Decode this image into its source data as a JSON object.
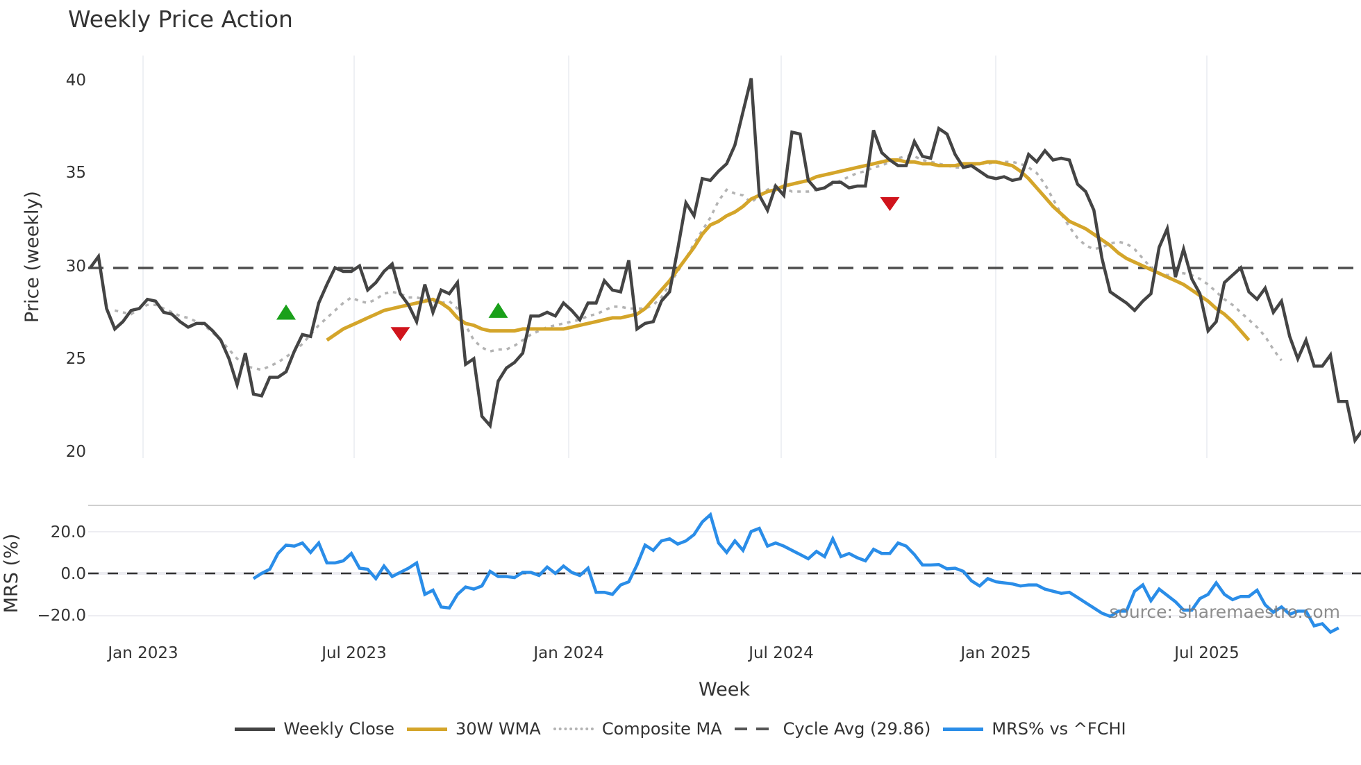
{
  "title": "Weekly Price Action",
  "source_text": "source: sharemaestro.com",
  "price_axis": {
    "label": "Price (weekly)",
    "ticks": [
      "20",
      "25",
      "30",
      "35",
      "40"
    ]
  },
  "mrs_axis": {
    "label": "MRS (%)",
    "ticks": [
      "−20.0",
      "0.0",
      "20.0"
    ]
  },
  "x_axis": {
    "label": "Week",
    "ticks": [
      "Jan 2023",
      "Jul 2023",
      "Jan 2024",
      "Jul 2024",
      "Jan 2025",
      "Jul 2025"
    ]
  },
  "legend": [
    {
      "label": "Weekly Close",
      "color": "#444444",
      "style": "solid"
    },
    {
      "label": "30W WMA",
      "color": "#d4a52a",
      "style": "solid"
    },
    {
      "label": "Composite MA",
      "color": "#b3b3b3",
      "style": "dotted"
    },
    {
      "label": "Cycle Avg (29.86)",
      "color": "#555555",
      "style": "dashed"
    },
    {
      "label": "MRS% vs ^FCHI",
      "color": "#2a8de8",
      "style": "solid"
    }
  ],
  "chart_data": [
    {
      "type": "line",
      "title": "Weekly Price Action",
      "xlabel": "Week",
      "ylabel": "Price (weekly)",
      "ylim": [
        19.5,
        41
      ],
      "x_ticks": [
        "Jan 2023",
        "Jul 2023",
        "Jan 2024",
        "Jul 2024",
        "Jan 2025",
        "Jul 2025"
      ],
      "x_start_week_index": 0,
      "grid": "vertical only",
      "hline": {
        "name": "Cycle Avg",
        "value": 29.86
      },
      "series": [
        {
          "name": "Weekly Close",
          "start": 0,
          "values": [
            29.9,
            30.5,
            27.7,
            26.6,
            27.0,
            27.6,
            27.7,
            28.2,
            28.1,
            27.5,
            27.4,
            27.0,
            26.7,
            26.9,
            26.9,
            26.5,
            26.0,
            25.0,
            23.6,
            25.3,
            23.1,
            23.0,
            24.0,
            24.0,
            24.3,
            25.4,
            26.3,
            26.2,
            28.0,
            29.0,
            29.9,
            29.7,
            29.7,
            30.0,
            28.7,
            29.1,
            29.7,
            30.1,
            28.5,
            27.9,
            27.0,
            29.0,
            27.5,
            28.7,
            28.5,
            29.1,
            24.7,
            25.0,
            21.9,
            21.4,
            23.8,
            24.5,
            24.8,
            25.3,
            27.3,
            27.3,
            27.5,
            27.3,
            28.0,
            27.6,
            27.1,
            28.0,
            28.0,
            29.2,
            28.7,
            28.6,
            30.3,
            26.6,
            26.9,
            27.0,
            28.1,
            28.6,
            30.9,
            33.4,
            32.7,
            34.7,
            34.6,
            35.1,
            35.5,
            36.5,
            38.3,
            40.1,
            33.8,
            33.0,
            34.3,
            33.8,
            37.2,
            37.1,
            34.6,
            34.1,
            34.2,
            34.5,
            34.5,
            34.2,
            34.3,
            34.3,
            37.3,
            36.1,
            35.7,
            35.4,
            35.4,
            36.7,
            35.9,
            35.8,
            37.4,
            37.1,
            36.0,
            35.3,
            35.4,
            35.1,
            34.8,
            34.7,
            34.8,
            34.6,
            34.7,
            36.0,
            35.6,
            36.2,
            35.7,
            35.8,
            35.7,
            34.4,
            34.0,
            33.0,
            30.4,
            28.6,
            28.3,
            28.0,
            27.6,
            28.1,
            28.5,
            31.0,
            32.0,
            29.4,
            30.9,
            29.3,
            28.5,
            26.5,
            27.0,
            29.1,
            29.5,
            29.9,
            28.6,
            28.2,
            28.8,
            27.5,
            28.1,
            26.2,
            25.0,
            26.0,
            24.6,
            24.6,
            25.2,
            22.7,
            22.7,
            20.6,
            21.2
          ]
        },
        {
          "name": "30W WMA",
          "start": 29,
          "values": [
            26.0,
            26.3,
            26.6,
            26.8,
            27.0,
            27.2,
            27.4,
            27.6,
            27.7,
            27.8,
            27.9,
            28.0,
            28.1,
            28.2,
            28.0,
            27.7,
            27.2,
            26.9,
            26.8,
            26.6,
            26.5,
            26.5,
            26.5,
            26.5,
            26.6,
            26.6,
            26.6,
            26.6,
            26.6,
            26.6,
            26.7,
            26.8,
            26.9,
            27.0,
            27.1,
            27.2,
            27.2,
            27.3,
            27.4,
            27.7,
            28.2,
            28.7,
            29.2,
            29.8,
            30.4,
            31.0,
            31.7,
            32.2,
            32.4,
            32.7,
            32.9,
            33.2,
            33.6,
            33.8,
            34.0,
            34.1,
            34.3,
            34.4,
            34.5,
            34.6,
            34.8,
            34.9,
            35.0,
            35.1,
            35.2,
            35.3,
            35.4,
            35.5,
            35.6,
            35.7,
            35.7,
            35.6,
            35.6,
            35.5,
            35.5,
            35.4,
            35.4,
            35.4,
            35.5,
            35.5,
            35.5,
            35.6,
            35.6,
            35.5,
            35.4,
            35.1,
            34.7,
            34.2,
            33.7,
            33.2,
            32.8,
            32.4,
            32.2,
            32.0,
            31.7,
            31.4,
            31.1,
            30.7,
            30.4,
            30.2,
            30.0,
            29.8,
            29.6,
            29.4,
            29.2,
            29.0,
            28.7,
            28.4,
            28.1,
            27.7,
            27.4,
            27.0,
            26.5,
            26.0
          ]
        },
        {
          "name": "Composite MA",
          "start": 3,
          "values": [
            27.6,
            27.5,
            27.4,
            27.7,
            27.9,
            27.9,
            27.7,
            27.5,
            27.3,
            27.2,
            27.0,
            26.8,
            26.4,
            26.0,
            25.5,
            25.0,
            24.6,
            24.5,
            24.4,
            24.6,
            24.8,
            25.1,
            25.4,
            25.8,
            26.3,
            26.8,
            27.2,
            27.6,
            28.0,
            28.3,
            28.1,
            28.0,
            28.2,
            28.5,
            28.6,
            28.5,
            28.3,
            28.3,
            28.2,
            28.1,
            28.0,
            28.1,
            27.7,
            26.8,
            26.0,
            25.6,
            25.4,
            25.5,
            25.5,
            25.7,
            26.0,
            26.3,
            26.5,
            26.7,
            26.8,
            26.9,
            27.0,
            27.1,
            27.3,
            27.4,
            27.6,
            27.8,
            27.8,
            27.7,
            27.7,
            27.7,
            27.9,
            28.3,
            29.0,
            29.7,
            30.4,
            31.2,
            31.9,
            32.6,
            33.5,
            34.1,
            33.9,
            33.8,
            33.4,
            33.8,
            34.1,
            34.3,
            34.2,
            34.0,
            34.0,
            34.0,
            34.1,
            34.2,
            34.4,
            34.6,
            34.8,
            35.0,
            35.1,
            35.3,
            35.4,
            35.6,
            35.8,
            35.9,
            35.9,
            35.7,
            35.6,
            35.5,
            35.4,
            35.3,
            35.3,
            35.4,
            35.5,
            35.5,
            35.6,
            35.6,
            35.6,
            35.5,
            35.3,
            35.0,
            34.4,
            33.6,
            32.8,
            32.1,
            31.5,
            31.1,
            30.9,
            31.0,
            31.2,
            31.3,
            31.2,
            30.9,
            30.4,
            29.9,
            29.6,
            29.5,
            29.6,
            29.6,
            29.5,
            29.3,
            29.0,
            28.6,
            28.2,
            27.9,
            27.5,
            27.1,
            26.7,
            26.2,
            25.5,
            24.9
          ]
        },
        {
          "name": "MRS% vs ^FCHI",
          "start": 20,
          "axis": "MRS (%)",
          "ylim": [
            -25,
            30
          ],
          "values": [
            -2.5,
            0,
            2,
            9.5,
            13.5,
            13,
            14.5,
            10,
            14.5,
            5,
            5,
            6,
            9.5,
            2.5,
            2,
            -2.5,
            3.5,
            -1.5,
            0.5,
            2.5,
            5,
            -10,
            -8,
            -16,
            -16.5,
            -10,
            -6.5,
            -7.5,
            -6,
            1,
            -1.5,
            -1.5,
            -2,
            0.5,
            0.5,
            -1,
            3,
            0,
            3.5,
            0.5,
            -1,
            2.5,
            -9,
            -9,
            -10,
            -5.5,
            -4,
            4,
            13.5,
            11,
            15.5,
            16.5,
            14,
            15.5,
            18.5,
            24.5,
            28,
            14.5,
            10,
            15.5,
            11,
            20,
            21.5,
            13,
            14.5,
            13,
            11,
            9,
            7,
            10.5,
            8,
            16.5,
            8,
            9.5,
            7.5,
            6,
            11.5,
            9.5,
            9.5,
            14.5,
            13,
            9,
            4,
            4,
            4.2,
            2.2,
            2.5,
            1,
            -3.5,
            -6,
            -2.5,
            -4,
            -4.5,
            -5,
            -6,
            -5.5,
            -5.5,
            -7.5,
            -8.5,
            -9.5,
            -9,
            -11.5,
            -14,
            -16.5,
            -19,
            -20.5,
            -18,
            -18,
            -8.5,
            -5.5,
            -13,
            -7.5,
            -10.5,
            -13.5,
            -17.5,
            -17.5,
            -12,
            -10,
            -4.5,
            -10,
            -12.5,
            -11,
            -11,
            -8,
            -15,
            -18.5,
            -16,
            -19.5,
            -18,
            -18,
            -25,
            -24,
            -28,
            -26
          ]
        }
      ],
      "markers": [
        {
          "type": "buy",
          "shape": "triangle-up",
          "color": "#1aa01a",
          "week": 24,
          "value": 27.4
        },
        {
          "type": "sell",
          "shape": "triangle-down",
          "color": "#d0141c",
          "week": 38,
          "value": 26.4
        },
        {
          "type": "buy",
          "shape": "triangle-up",
          "color": "#1aa01a",
          "week": 50,
          "value": 27.5
        },
        {
          "type": "sell",
          "shape": "triangle-down",
          "color": "#d0141c",
          "week": 98,
          "value": 33.4
        }
      ]
    }
  ]
}
